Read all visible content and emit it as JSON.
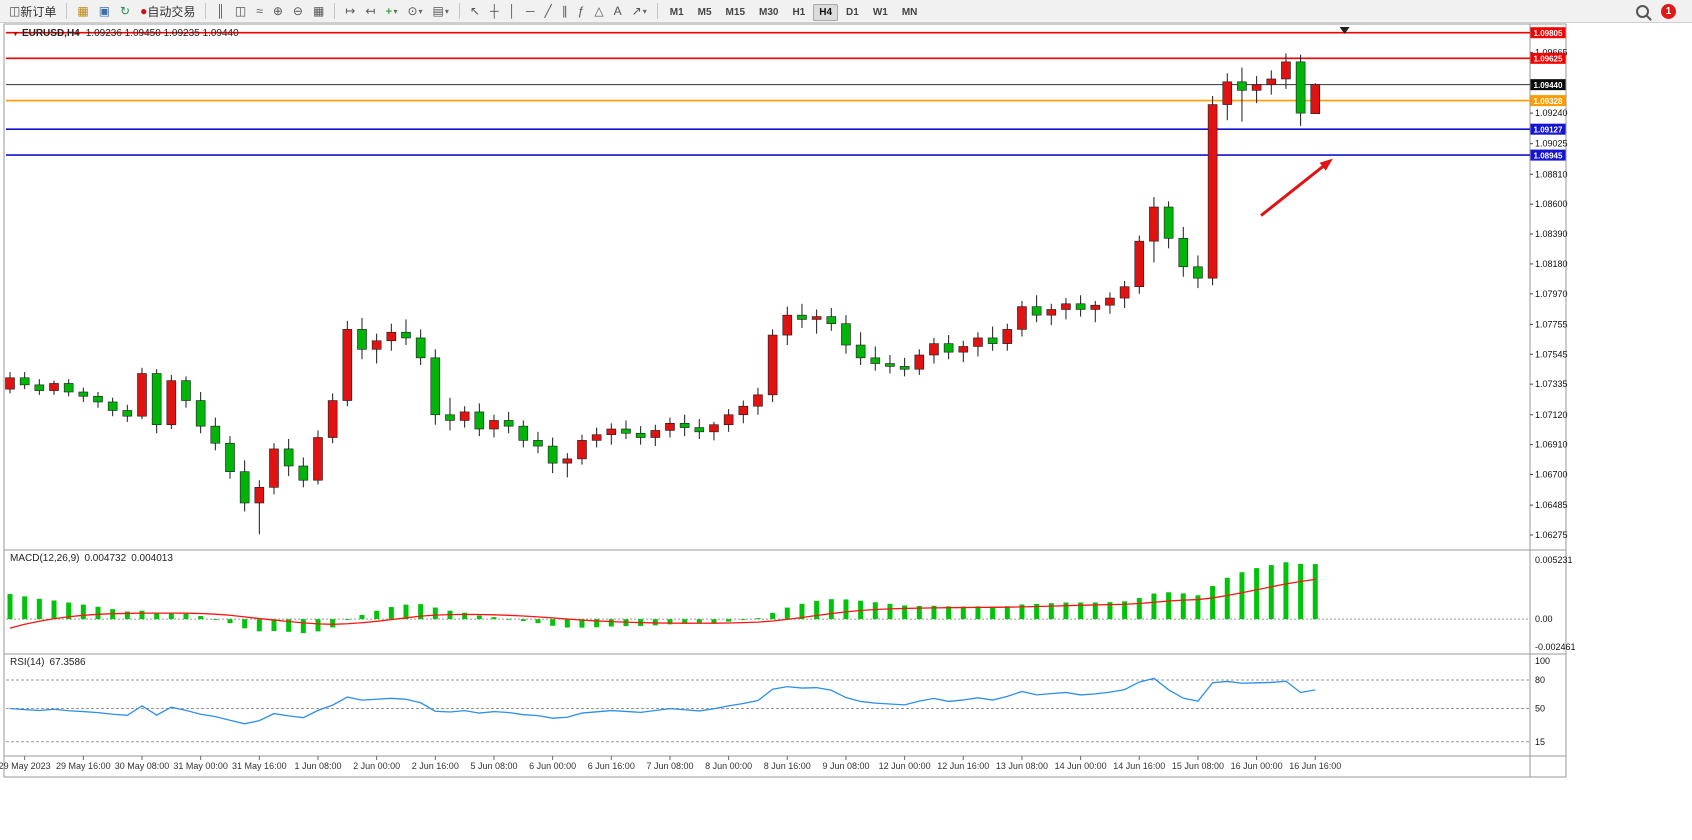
{
  "toolbar": {
    "new_order_label": "新订单",
    "auto_trading_label": "自动交易",
    "window_icons": [
      {
        "name": "new-chart-icon",
        "glyph": "▦",
        "color": "#b8860b"
      },
      {
        "name": "profiles-icon",
        "glyph": "▣",
        "color": "#3a6ea5"
      },
      {
        "name": "refresh-icon",
        "glyph": "↻",
        "color": "#2e8b57"
      }
    ],
    "chart_icons": [
      {
        "name": "bar-chart-icon",
        "glyph": "║"
      },
      {
        "name": "candlestick-icon",
        "glyph": "◫"
      },
      {
        "name": "line-chart-icon",
        "glyph": "≈"
      },
      {
        "name": "zoom-in-icon",
        "glyph": "⊕"
      },
      {
        "name": "zoom-out-icon",
        "glyph": "⊖"
      },
      {
        "name": "tile-windows-icon",
        "glyph": "▦"
      }
    ],
    "nav_icons": [
      {
        "name": "auto-scroll-icon",
        "glyph": "↦"
      },
      {
        "name": "chart-shift-icon",
        "glyph": "↤"
      },
      {
        "name": "indicators-icon",
        "glyph": "+",
        "color": "#0a8a0a",
        "caret": true
      },
      {
        "name": "periods-icon",
        "glyph": "⊙",
        "caret": true
      },
      {
        "name": "templates-icon",
        "glyph": "▤",
        "caret": true
      }
    ],
    "draw_icons": [
      {
        "name": "cursor-icon",
        "glyph": "↖"
      },
      {
        "name": "crosshair-icon",
        "glyph": "┼"
      },
      {
        "name": "vertical-line-icon",
        "glyph": "│"
      },
      {
        "name": "horizontal-line-icon",
        "glyph": "─"
      },
      {
        "name": "trendline-icon",
        "glyph": "╱"
      },
      {
        "name": "channel-icon",
        "glyph": "∥"
      },
      {
        "name": "fibonacci-icon",
        "glyph": "ƒ"
      },
      {
        "name": "shapes-icon",
        "glyph": "△"
      },
      {
        "name": "text-icon",
        "glyph": "A"
      },
      {
        "name": "arrows-icon",
        "glyph": "↗",
        "caret": true
      }
    ],
    "timeframes": [
      "M1",
      "M5",
      "M15",
      "M30",
      "H1",
      "H4",
      "D1",
      "W1",
      "MN"
    ],
    "active_timeframe": "H4",
    "notification_count": "1"
  },
  "chart_data": [
    {
      "type": "candlestick",
      "title": "EURUSD,H4",
      "symbol": "EURUSD",
      "timeframe": "H4",
      "ohlc_text": "1.09236 1.09450 1.09235 1.09440",
      "up_color": "#e01212",
      "down_color": "#00b40a",
      "price_range": [
        1.06275,
        1.0981
      ],
      "y_ticks": [
        "1.09665",
        "1.09240",
        "1.09025",
        "1.08810",
        "1.08600",
        "1.08390",
        "1.08180",
        "1.07970",
        "1.07755",
        "1.07545",
        "1.07335",
        "1.07120",
        "1.06910",
        "1.06700",
        "1.06485",
        "1.06275"
      ],
      "levels": [
        {
          "label": "1.09805",
          "value": 1.09805,
          "color": "#f40000"
        },
        {
          "label": "1.09625",
          "value": 1.09625,
          "color": "#f40000"
        },
        {
          "label": "1.09328",
          "value": 1.09328,
          "color": "#ff9c00"
        },
        {
          "label": "1.09127",
          "value": 1.09127,
          "color": "#1414d2"
        },
        {
          "label": "1.08945",
          "value": 1.08945,
          "color": "#1414d2"
        }
      ],
      "current_price": {
        "label": "1.09440",
        "value": 1.0944
      },
      "annotations": [
        {
          "type": "arrow",
          "name": "trend-arrow",
          "color": "#e01414",
          "from_bar": 85.3,
          "from_price": 1.0852,
          "to_bar": 90.2,
          "to_price": 1.0892
        }
      ],
      "shift_marker_bar": 91,
      "x_labels": [
        "29 May 2023",
        "29 May 16:00",
        "30 May 08:00",
        "31 May 00:00",
        "31 May 16:00",
        "1 Jun 08:00",
        "2 Jun 00:00",
        "2 Jun 16:00",
        "5 Jun 08:00",
        "6 Jun 00:00",
        "6 Jun 16:00",
        "7 Jun 08:00",
        "8 Jun 00:00",
        "8 Jun 16:00",
        "9 Jun 08:00",
        "12 Jun 00:00",
        "12 Jun 16:00",
        "13 Jun 08:00",
        "14 Jun 00:00",
        "14 Jun 16:00",
        "15 Jun 08:00",
        "16 Jun 00:00",
        "16 Jun 16:00"
      ],
      "candles": [
        [
          1.073,
          1.0742,
          1.0727,
          1.0738
        ],
        [
          1.0738,
          1.0742,
          1.073,
          1.0733
        ],
        [
          1.0733,
          1.0737,
          1.0726,
          1.0729
        ],
        [
          1.0729,
          1.0736,
          1.0726,
          1.0734
        ],
        [
          1.0734,
          1.0737,
          1.0725,
          1.0728
        ],
        [
          1.0728,
          1.0731,
          1.0721,
          1.0725
        ],
        [
          1.0725,
          1.0728,
          1.0717,
          1.0721
        ],
        [
          1.0721,
          1.0724,
          1.0711,
          1.0715
        ],
        [
          1.0715,
          1.0719,
          1.0707,
          1.0711
        ],
        [
          1.0711,
          1.0745,
          1.0709,
          1.0741
        ],
        [
          1.0741,
          1.0744,
          1.0699,
          1.0705
        ],
        [
          1.0705,
          1.074,
          1.0702,
          1.0736
        ],
        [
          1.0736,
          1.0739,
          1.0717,
          1.0722
        ],
        [
          1.0722,
          1.0728,
          1.0699,
          1.0704
        ],
        [
          1.0704,
          1.071,
          1.0687,
          1.0692
        ],
        [
          1.0692,
          1.0697,
          1.0667,
          1.0672
        ],
        [
          1.0672,
          1.068,
          1.0644,
          1.065
        ],
        [
          1.065,
          1.0666,
          1.0628,
          1.0661
        ],
        [
          1.0661,
          1.0692,
          1.0656,
          1.0688
        ],
        [
          1.0688,
          1.0695,
          1.0669,
          1.0676
        ],
        [
          1.0676,
          1.0682,
          1.0661,
          1.0666
        ],
        [
          1.0666,
          1.0701,
          1.0663,
          1.0696
        ],
        [
          1.0696,
          1.0727,
          1.0692,
          1.0722
        ],
        [
          1.0722,
          1.0778,
          1.0718,
          1.0772
        ],
        [
          1.0772,
          1.078,
          1.0751,
          1.0758
        ],
        [
          1.0758,
          1.0769,
          1.0748,
          1.0764
        ],
        [
          1.0764,
          1.0776,
          1.0757,
          1.077
        ],
        [
          1.077,
          1.0779,
          1.0761,
          1.0766
        ],
        [
          1.0766,
          1.0772,
          1.0747,
          1.0752
        ],
        [
          1.0752,
          1.0758,
          1.0705,
          1.0712
        ],
        [
          1.0712,
          1.0724,
          1.0701,
          1.0708
        ],
        [
          1.0708,
          1.0718,
          1.0703,
          1.0714
        ],
        [
          1.0714,
          1.072,
          1.0697,
          1.0702
        ],
        [
          1.0702,
          1.0712,
          1.0696,
          1.0708
        ],
        [
          1.0708,
          1.0714,
          1.0699,
          1.0704
        ],
        [
          1.0704,
          1.0708,
          1.0689,
          1.0694
        ],
        [
          1.0694,
          1.07,
          1.0685,
          1.069
        ],
        [
          1.069,
          1.0696,
          1.0671,
          1.0678
        ],
        [
          1.0678,
          1.0685,
          1.0668,
          1.0681
        ],
        [
          1.0681,
          1.0698,
          1.0677,
          1.0694
        ],
        [
          1.0694,
          1.0703,
          1.0689,
          1.0698
        ],
        [
          1.0698,
          1.0706,
          1.0691,
          1.0702
        ],
        [
          1.0702,
          1.0708,
          1.0695,
          1.0699
        ],
        [
          1.0699,
          1.0704,
          1.0691,
          1.0696
        ],
        [
          1.0696,
          1.0705,
          1.069,
          1.0701
        ],
        [
          1.0701,
          1.071,
          1.0696,
          1.0706
        ],
        [
          1.0706,
          1.0712,
          1.0697,
          1.0703
        ],
        [
          1.0703,
          1.0709,
          1.0695,
          1.07
        ],
        [
          1.07,
          1.0707,
          1.0694,
          1.0705
        ],
        [
          1.0705,
          1.0716,
          1.07,
          1.0712
        ],
        [
          1.0712,
          1.0722,
          1.0706,
          1.0718
        ],
        [
          1.0718,
          1.0731,
          1.0712,
          1.0726
        ],
        [
          1.0726,
          1.0772,
          1.0721,
          1.0768
        ],
        [
          1.0768,
          1.0788,
          1.0761,
          1.0782
        ],
        [
          1.0782,
          1.079,
          1.0773,
          1.0779
        ],
        [
          1.0779,
          1.0786,
          1.0769,
          1.0781
        ],
        [
          1.0781,
          1.0787,
          1.0771,
          1.0776
        ],
        [
          1.0776,
          1.0782,
          1.0755,
          1.0761
        ],
        [
          1.0761,
          1.077,
          1.0747,
          1.0752
        ],
        [
          1.0752,
          1.076,
          1.0743,
          1.0748
        ],
        [
          1.0748,
          1.0754,
          1.0741,
          1.0746
        ],
        [
          1.0746,
          1.0752,
          1.0739,
          1.0744
        ],
        [
          1.0744,
          1.0758,
          1.074,
          1.0754
        ],
        [
          1.0754,
          1.0766,
          1.0748,
          1.0762
        ],
        [
          1.0762,
          1.0768,
          1.0751,
          1.0756
        ],
        [
          1.0756,
          1.0764,
          1.0749,
          1.076
        ],
        [
          1.076,
          1.077,
          1.0753,
          1.0766
        ],
        [
          1.0766,
          1.0774,
          1.0757,
          1.0762
        ],
        [
          1.0762,
          1.0776,
          1.0757,
          1.0772
        ],
        [
          1.0772,
          1.0792,
          1.0767,
          1.0788
        ],
        [
          1.0788,
          1.0796,
          1.0777,
          1.0782
        ],
        [
          1.0782,
          1.079,
          1.0775,
          1.0786
        ],
        [
          1.0786,
          1.0794,
          1.0779,
          1.079
        ],
        [
          1.079,
          1.0796,
          1.0781,
          1.0786
        ],
        [
          1.0786,
          1.0792,
          1.0777,
          1.0789
        ],
        [
          1.0789,
          1.0798,
          1.0783,
          1.0794
        ],
        [
          1.0794,
          1.0806,
          1.0787,
          1.0802
        ],
        [
          1.0802,
          1.0838,
          1.0797,
          1.0834
        ],
        [
          1.0834,
          1.0865,
          1.0819,
          1.0858
        ],
        [
          1.0858,
          1.0862,
          1.0829,
          1.0836
        ],
        [
          1.0836,
          1.0844,
          1.0809,
          1.0816
        ],
        [
          1.0816,
          1.0824,
          1.0801,
          1.0808
        ],
        [
          1.0808,
          1.0936,
          1.0803,
          1.093
        ],
        [
          1.093,
          1.0952,
          1.0919,
          1.0946
        ],
        [
          1.0946,
          1.0956,
          1.0918,
          1.094
        ],
        [
          1.094,
          1.095,
          1.0931,
          1.0944
        ],
        [
          1.0944,
          1.0954,
          1.0937,
          1.0948
        ],
        [
          1.0948,
          1.0966,
          1.0941,
          1.096
        ],
        [
          1.096,
          1.0965,
          1.0915,
          1.0924
        ],
        [
          1.09236,
          1.0945,
          1.09235,
          1.0944
        ]
      ]
    },
    {
      "type": "macd",
      "label": "MACD(12,26,9)",
      "params": [
        12,
        26,
        9
      ],
      "main_value_text": "0.004732",
      "signal_value_text": "0.004013",
      "axis_labels": [
        "0.005231",
        "0.00",
        "-0.002461"
      ],
      "range": [
        -0.002461,
        0.005231
      ],
      "histogram_color": "#00c40a",
      "signal_color": "#ff1414"
    },
    {
      "type": "rsi",
      "label": "RSI(14)",
      "period": 14,
      "value_text": "67.3586",
      "axis_labels": [
        "100",
        "80",
        "50",
        "15"
      ],
      "level_lines": [
        80,
        50,
        15
      ],
      "range": [
        0,
        100
      ],
      "line_color": "#2e8fe8"
    }
  ]
}
